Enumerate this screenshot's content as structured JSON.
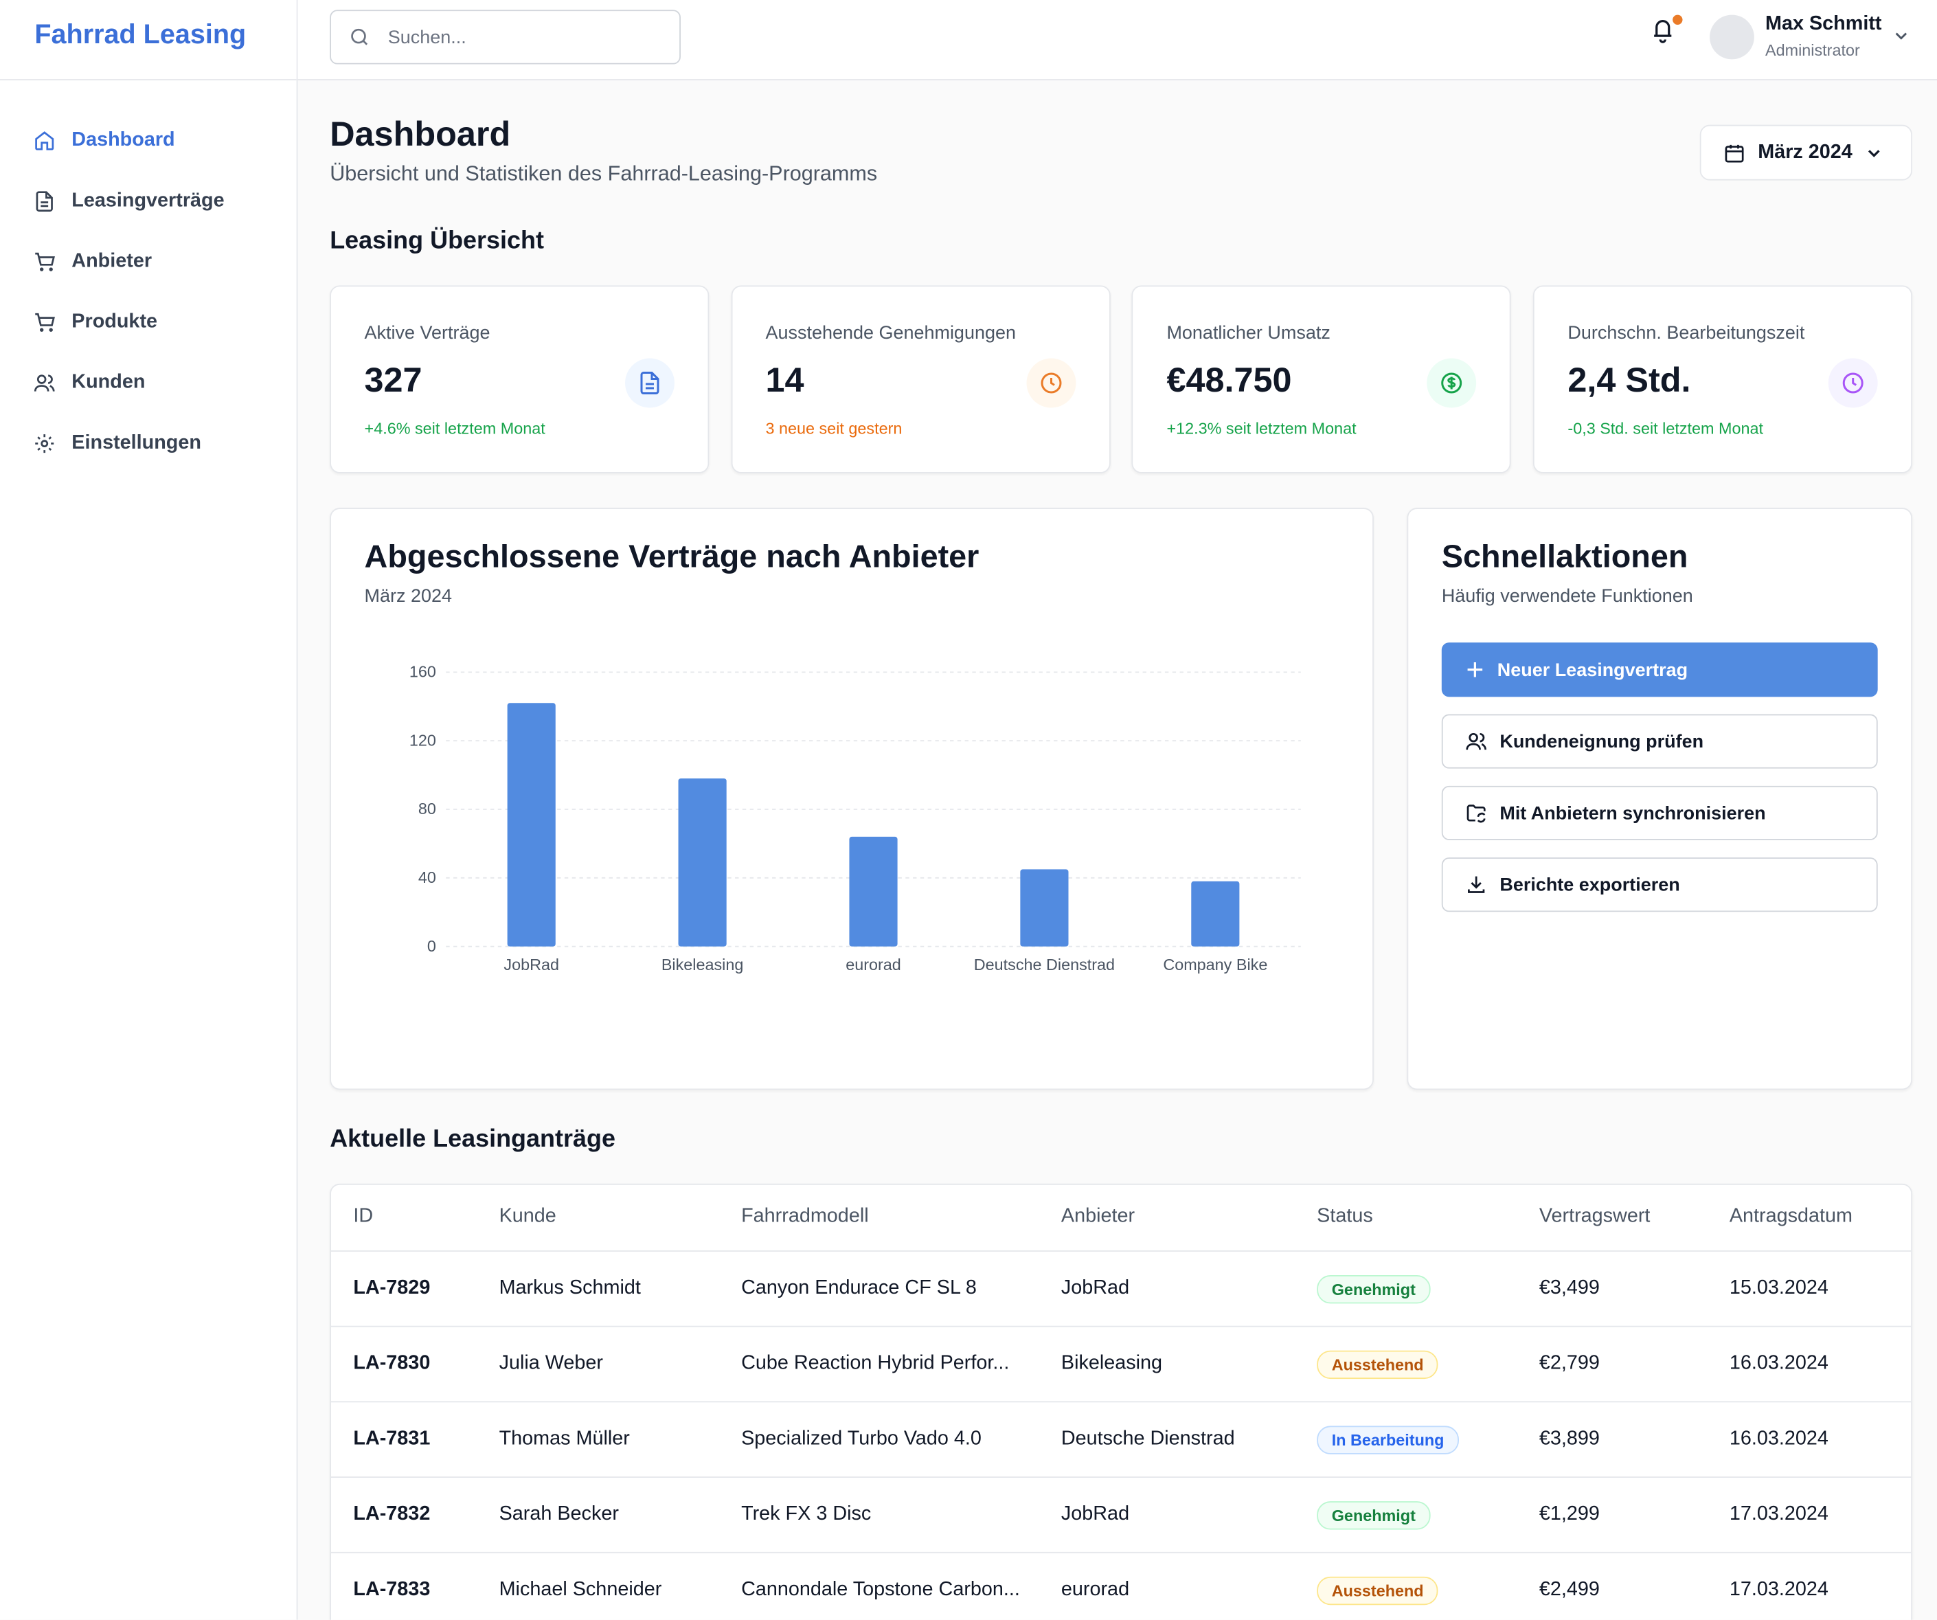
{
  "brand": "Fahrrad Leasing",
  "search_placeholder": "Suchen...",
  "user": {
    "name": "Max Schmitt",
    "role": "Administrator"
  },
  "nav": [
    "Dashboard",
    "Leasingverträge",
    "Anbieter",
    "Produkte",
    "Kunden",
    "Einstellungen"
  ],
  "header": {
    "title": "Dashboard",
    "subtitle": "Übersicht und Statistiken des Fahrrad-Leasing-Programms",
    "period": "März 2024"
  },
  "overview": {
    "heading": "Leasing Übersicht",
    "cards": [
      {
        "label": "Aktive Verträge",
        "value": 327,
        "note": "+4.6% seit letztem Monat"
      },
      {
        "label": "Ausstehende Genehmigungen",
        "value": 14,
        "note": "3 neue seit gestern"
      },
      {
        "label": "Monatlicher Umsatz",
        "value": "€48.750",
        "note": "+12.3% seit letztem Monat"
      },
      {
        "label": "Durchschn. Bearbeitungszeit",
        "value": "2,4 Std.",
        "note": "-0,3 Std. seit letztem Monat"
      }
    ]
  },
  "chart_data": {
    "type": "bar",
    "title": "Abgeschlossene Verträge nach Anbieter",
    "subtitle": "März 2024",
    "categories": [
      "JobRad",
      "Bikeleasing",
      "eurorad",
      "Deutsche Dienstrad",
      "Company Bike"
    ],
    "values": [
      142,
      98,
      64,
      45,
      38
    ],
    "color": "#528be0",
    "ylim": [
      0,
      160
    ],
    "yticks": [
      0,
      40,
      80,
      120,
      160
    ],
    "grid": true
  },
  "quick_actions": {
    "title": "Schnellaktionen",
    "subtitle": "Häufig verwendete Funktionen",
    "actions": [
      "Neuer Leasingvertrag",
      "Kundeneignung prüfen",
      "Mit Anbietern synchronisieren",
      "Berichte exportieren"
    ]
  },
  "table": {
    "title": "Aktuelle Leasinganträge",
    "columns": [
      "ID",
      "Kunde",
      "Fahrradmodell",
      "Anbieter",
      "Status",
      "Vertragswert",
      "Antragsdatum"
    ],
    "rows": [
      [
        "LA-7829",
        "Markus Schmidt",
        "Canyon Endurace CF SL 8",
        "JobRad",
        "Genehmigt",
        "€3,499",
        "15.03.2024"
      ],
      [
        "LA-7830",
        "Julia Weber",
        "Cube Reaction Hybrid Perfor...",
        "Bikeleasing",
        "Ausstehend",
        "€2,799",
        "16.03.2024"
      ],
      [
        "LA-7831",
        "Thomas Müller",
        "Specialized Turbo Vado 4.0",
        "Deutsche Dienstrad",
        "In Bearbeitung",
        "€3,899",
        "16.03.2024"
      ],
      [
        "LA-7832",
        "Sarah Becker",
        "Trek FX 3 Disc",
        "JobRad",
        "Genehmigt",
        "€1,299",
        "17.03.2024"
      ],
      [
        "LA-7833",
        "Michael Schneider",
        "Cannondale Topstone Carbon...",
        "eurorad",
        "Ausstehend",
        "€2,499",
        "17.03.2024"
      ]
    ]
  }
}
